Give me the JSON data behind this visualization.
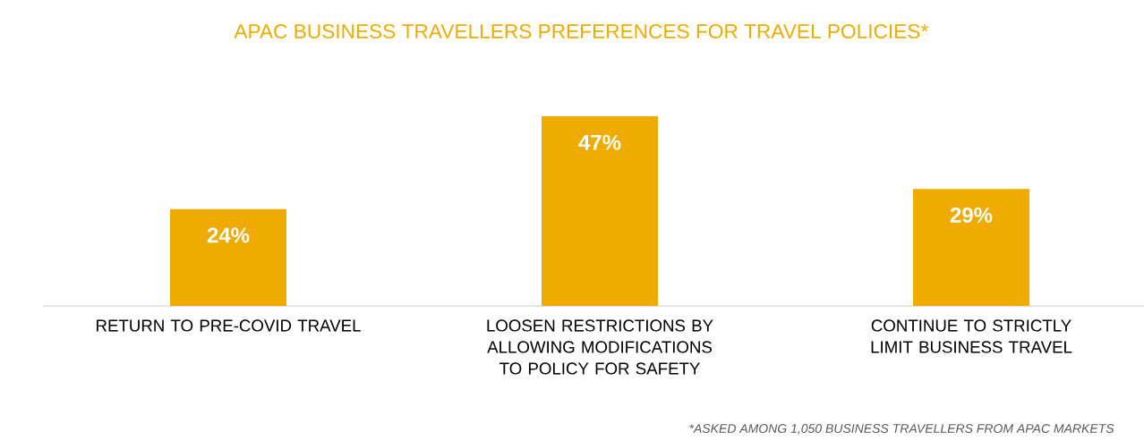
{
  "chart_data": {
    "type": "bar",
    "title": "APAC BUSINESS TRAVELLERS PREFERENCES FOR TRAVEL POLICIES*",
    "categories": [
      "RETURN TO PRE-COVID TRAVEL",
      "LOOSEN RESTRICTIONS BY ALLOWING MODIFICATIONS TO POLICY FOR SAFETY",
      "CONTINUE TO STRICTLY LIMIT BUSINESS TRAVEL"
    ],
    "values": [
      24,
      47,
      29
    ],
    "value_labels": [
      "24%",
      "47%",
      "29%"
    ],
    "color": "#f0ab00",
    "annotations": [
      "*ASKED AMONG 1,050 BUSINESS TRAVELLERS FROM APAC MARKETS"
    ]
  }
}
